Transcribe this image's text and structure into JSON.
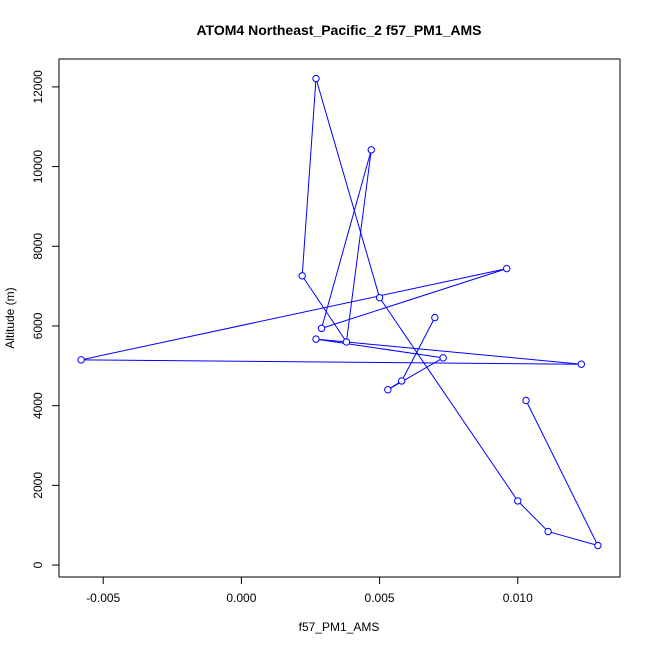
{
  "chart_data": {
    "type": "line",
    "title": "ATOM4 Northeast_Pacific_2 f57_PM1_AMS",
    "xlabel": "f57_PM1_AMS",
    "ylabel": "Altitude (m)",
    "x_ticks": [
      -0.005,
      0.0,
      0.005,
      0.01
    ],
    "x_tick_labels": [
      "-0.005",
      "0.000",
      "0.005",
      "0.010"
    ],
    "y_ticks": [
      0,
      2000,
      4000,
      6000,
      8000,
      10000,
      12000
    ],
    "y_tick_labels": [
      "0",
      "2000",
      "4000",
      "6000",
      "8000",
      "10000",
      "12000"
    ],
    "xlim": [
      -0.0066,
      0.0137
    ],
    "ylim": [
      -300,
      12700
    ],
    "grid": false,
    "series": [
      {
        "color": "#0000ff",
        "marker": "open-circle",
        "points": [
          {
            "x": 0.0103,
            "y": 4130
          },
          {
            "x": 0.0129,
            "y": 490
          },
          {
            "x": 0.0111,
            "y": 840
          },
          {
            "x": 0.01,
            "y": 1610
          },
          {
            "x": 0.005,
            "y": 6710
          },
          {
            "x": 0.0027,
            "y": 12210
          },
          {
            "x": 0.0022,
            "y": 7260
          },
          {
            "x": 0.0038,
            "y": 5600
          },
          {
            "x": 0.0047,
            "y": 10420
          },
          {
            "x": 0.0029,
            "y": 5940
          },
          {
            "x": 0.0096,
            "y": 7440
          },
          {
            "x": -0.0058,
            "y": 5150
          },
          {
            "x": 0.0123,
            "y": 5040
          },
          {
            "x": 0.0027,
            "y": 5670
          },
          {
            "x": 0.0073,
            "y": 5200
          },
          {
            "x": 0.0053,
            "y": 4400
          },
          {
            "x": 0.0058,
            "y": 4620
          },
          {
            "x": 0.007,
            "y": 6210
          }
        ]
      }
    ]
  }
}
